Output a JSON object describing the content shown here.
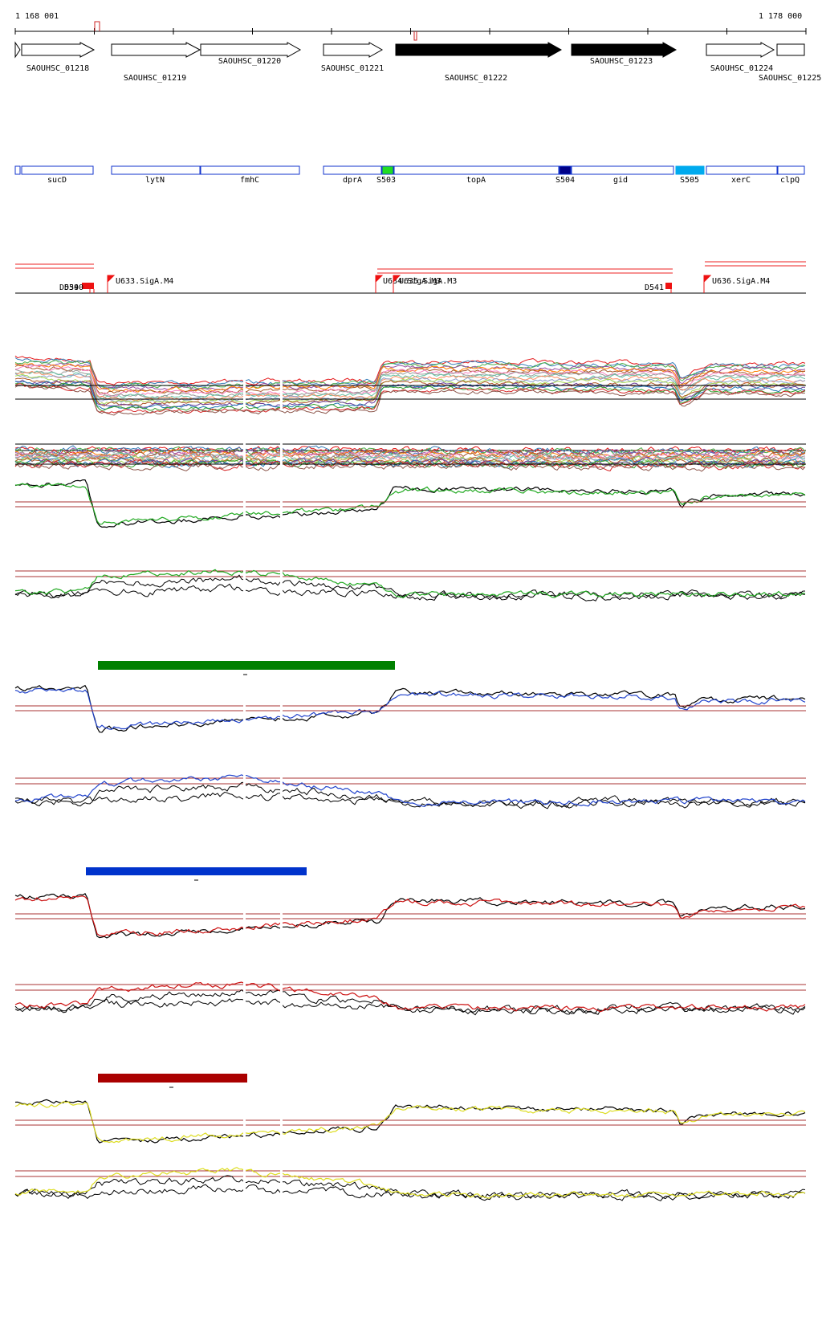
{
  "coordinates": {
    "start": "1 168 001",
    "end": "1 178 000"
  },
  "locus_genes": [
    {
      "id": "SAOUHSC_01218",
      "filled": false
    },
    {
      "id": "SAOUHSC_01219",
      "filled": false
    },
    {
      "id": "SAOUHSC_01220",
      "filled": false
    },
    {
      "id": "SAOUHSC_01221",
      "filled": false
    },
    {
      "id": "SAOUHSC_01222",
      "filled": true
    },
    {
      "id": "SAOUHSC_01223",
      "filled": true
    },
    {
      "id": "SAOUHSC_01224",
      "filled": false
    },
    {
      "id": "SAOUHSC_01225",
      "filled": false
    }
  ],
  "gene_names": [
    "sucD",
    "lytN",
    "fmhC",
    "dprA",
    "topA",
    "gid",
    "xerC",
    "clpQ"
  ],
  "segments": [
    {
      "label": "S503",
      "color": "#22dd22"
    },
    {
      "label": "S504",
      "color": "#000088"
    },
    {
      "label": "S505",
      "color": "#00aaee"
    }
  ],
  "features": {
    "promoters": [
      "U633.SigA.M4",
      "U634.SigA.M3",
      "U635.SigA.M3",
      "U636.SigA.M4"
    ],
    "downstream": [
      "D539",
      "D540",
      "D541"
    ]
  },
  "condition_bars": [
    {
      "color": "#008000"
    },
    {
      "color": "#0033cc"
    },
    {
      "color": "#aa0000"
    }
  ],
  "track_colors": {
    "reference": "#000000",
    "thresholds": "#aa3333",
    "green": "#22aa22",
    "blue": "#2244cc",
    "red": "#cc1111",
    "yellow": "#dddd22"
  }
}
